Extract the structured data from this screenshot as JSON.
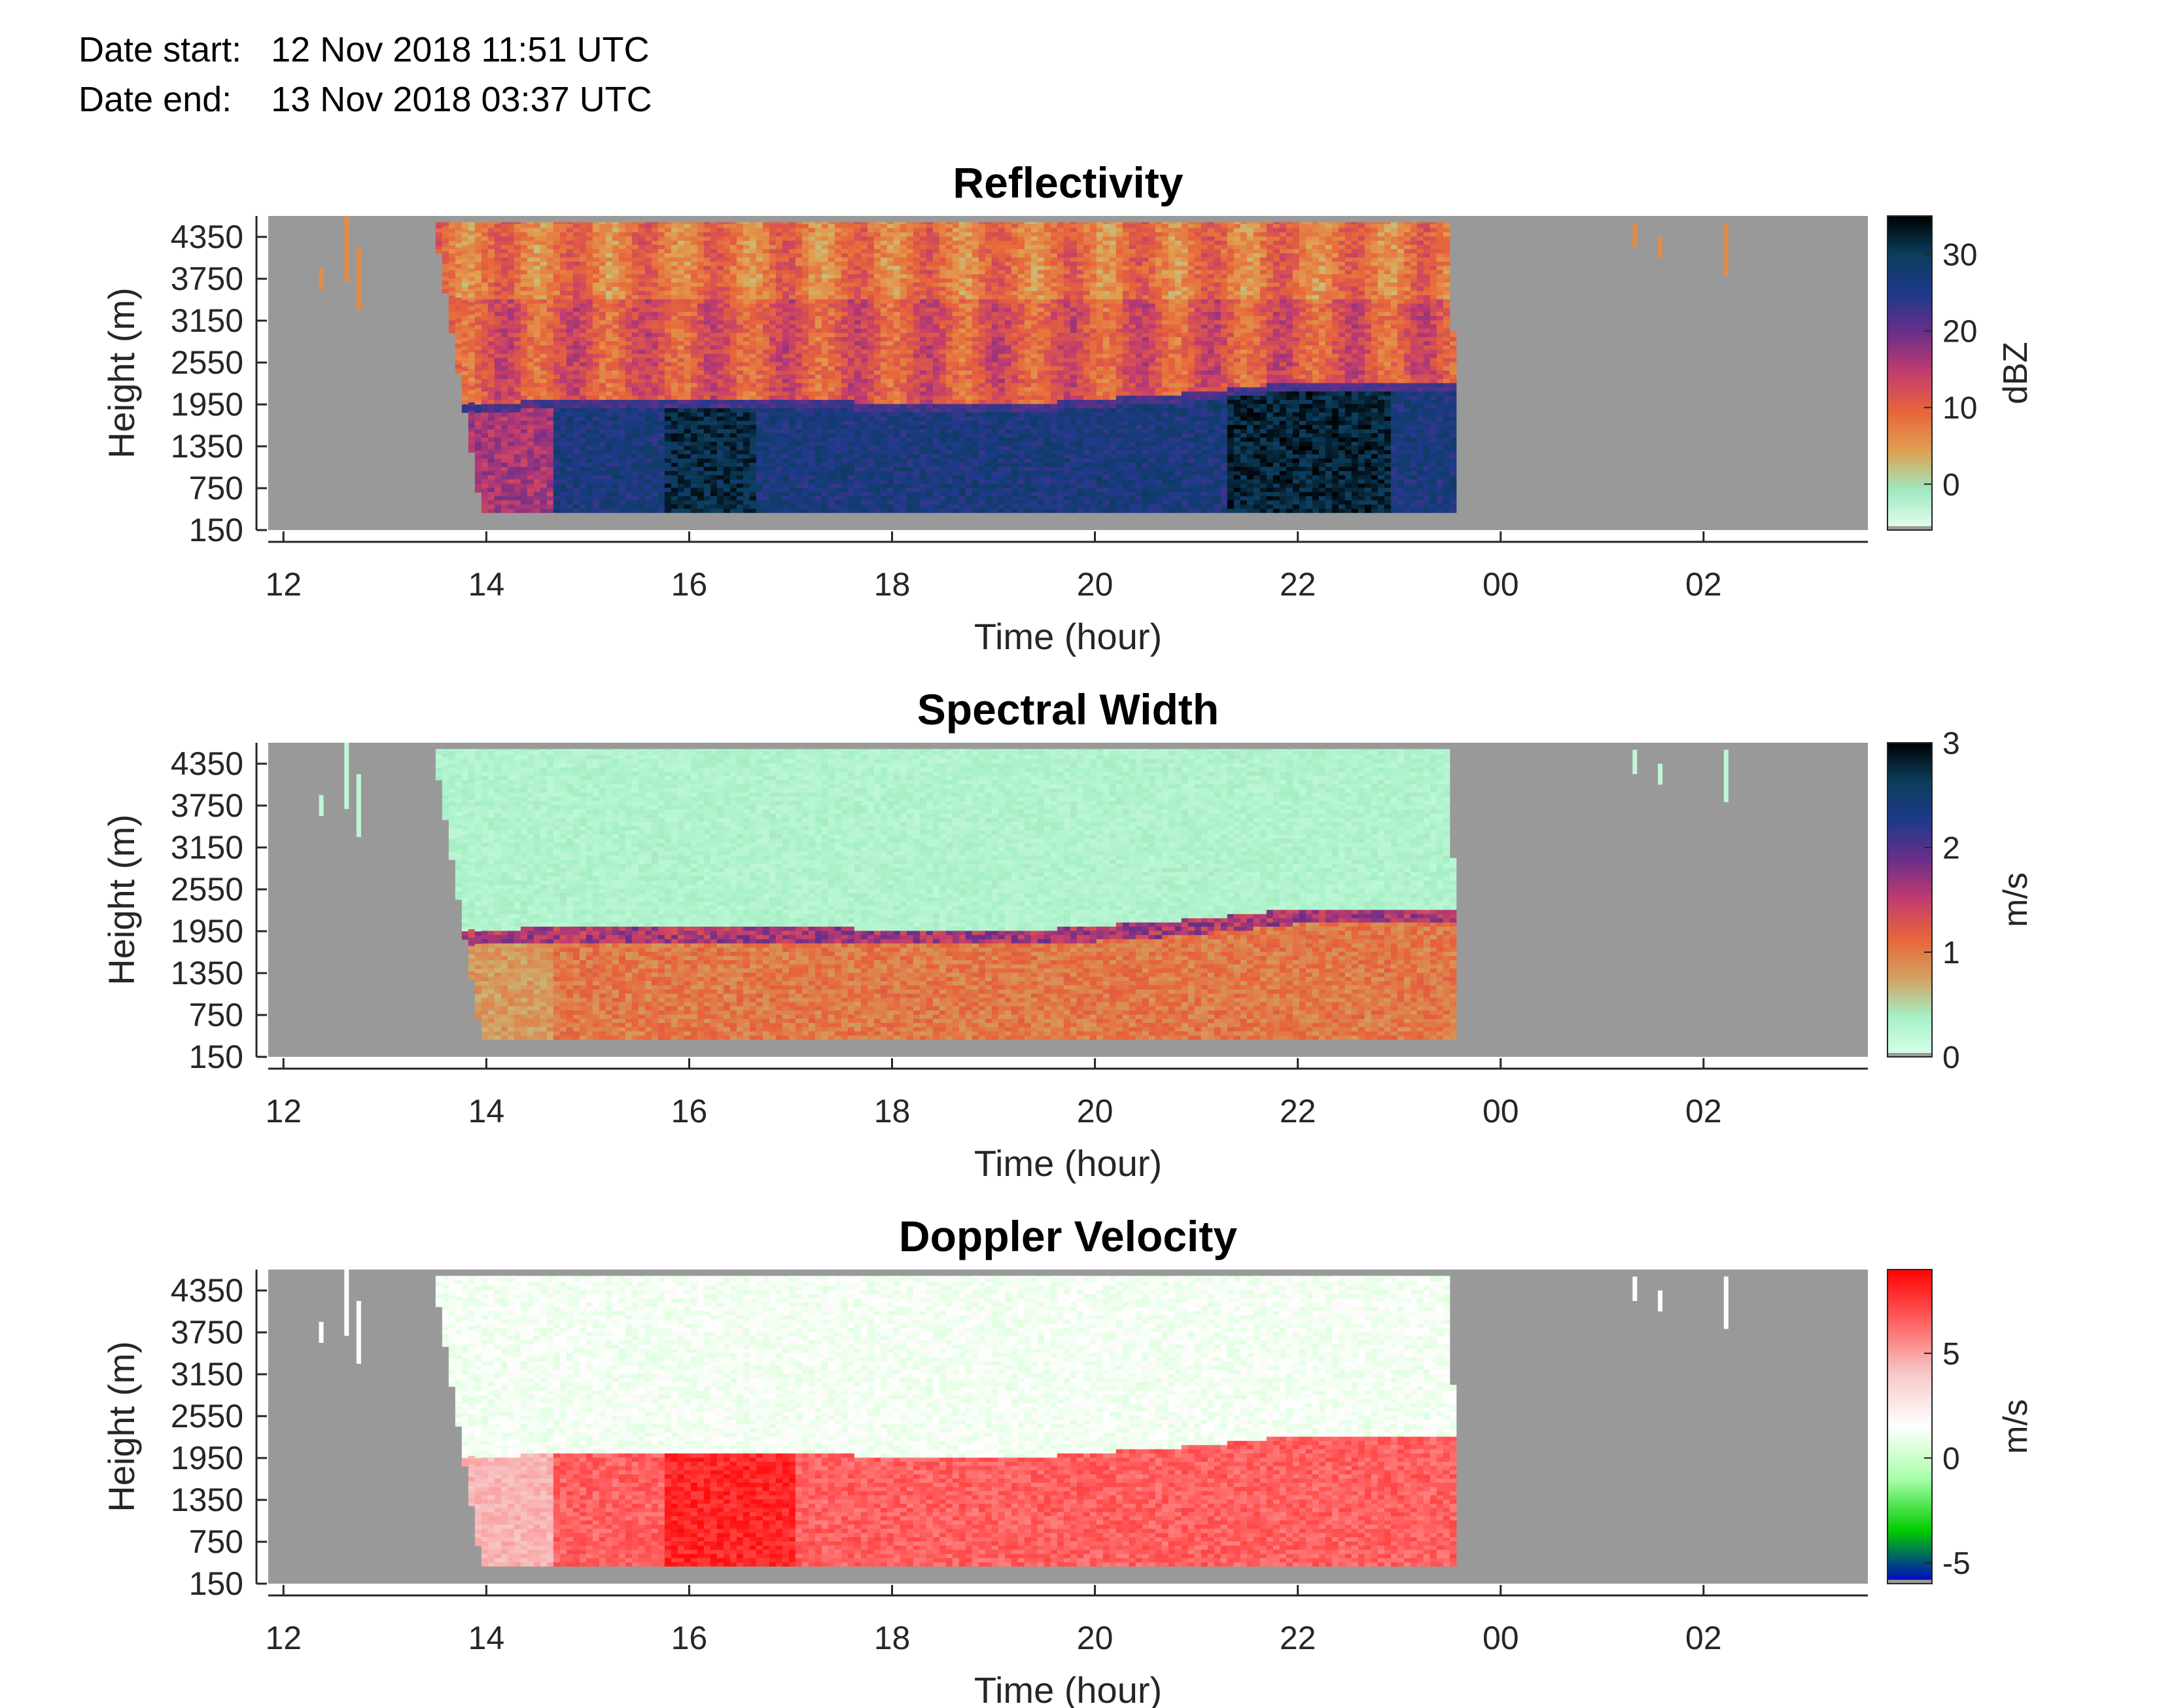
{
  "header": {
    "date_start_label": "Date start:",
    "date_start_value": "12 Nov 2018 11:51 UTC",
    "date_end_label": "Date end:",
    "date_end_value": "13 Nov 2018 03:37 UTC"
  },
  "chart_data": [
    {
      "type": "heatmap",
      "title": "Reflectivity",
      "xlabel": "Time (hour)",
      "ylabel": "Height (m)",
      "x_ticks": [
        "12",
        "14",
        "16",
        "18",
        "20",
        "22",
        "00",
        "02"
      ],
      "y_ticks": [
        "150",
        "750",
        "1350",
        "1950",
        "2550",
        "3150",
        "3750",
        "4350"
      ],
      "xlim_hours": [
        11.85,
        27.62
      ],
      "ylim": [
        150,
        4650
      ],
      "colorbar": {
        "label": "dBZ",
        "range": [
          -6,
          35
        ],
        "ticks": [
          "0",
          "10",
          "20",
          "30"
        ],
        "tick_values": [
          0,
          10,
          20,
          30
        ],
        "colors": [
          "#e6fff0",
          "#9fe8c0",
          "#e0a050",
          "#e8643a",
          "#c23c6e",
          "#6a2e8a",
          "#1e3a8a",
          "#0b3d5c",
          "#000000"
        ]
      },
      "no_data_color": "#999999",
      "echo_region": {
        "start_hour": 13.5,
        "end_hour": 23.55,
        "cloud_base_hour": 13.92,
        "top_m": 4500,
        "bottom_m": 400
      },
      "bright_band": {
        "from_hour": 13.92,
        "to_hour": 23.5,
        "height_m": [
          1950,
          2000,
          1950,
          1950,
          2100,
          2250,
          2250
        ],
        "at_hours": [
          13.92,
          16.0,
          18.0,
          19.5,
          21.0,
          22.0,
          23.5
        ]
      },
      "layers": {
        "above_band_value": 12,
        "below_band_value": 28,
        "rain_core_value": 33
      }
    },
    {
      "type": "heatmap",
      "title": "Spectral Width",
      "xlabel": "Time (hour)",
      "ylabel": "Height (m)",
      "x_ticks": [
        "12",
        "14",
        "16",
        "18",
        "20",
        "22",
        "00",
        "02"
      ],
      "y_ticks": [
        "150",
        "750",
        "1350",
        "1950",
        "2550",
        "3150",
        "3750",
        "4350"
      ],
      "xlim_hours": [
        11.85,
        27.62
      ],
      "ylim": [
        150,
        4650
      ],
      "colorbar": {
        "label": "m/s",
        "range": [
          0,
          3
        ],
        "ticks": [
          "0",
          "1",
          "2",
          "3"
        ],
        "tick_values": [
          0,
          1,
          2,
          3
        ],
        "colors": [
          "#d9ffe9",
          "#a6f0c6",
          "#d4a060",
          "#e8643a",
          "#c23c6e",
          "#6a2e8a",
          "#1e3a8a",
          "#0b3d5c",
          "#000000"
        ]
      },
      "no_data_color": "#999999",
      "layers": {
        "above_band_value": 0.2,
        "below_band_value": 1.05,
        "band_value": 1.8
      }
    },
    {
      "type": "heatmap",
      "title": "Doppler Velocity",
      "xlabel": "Time (hour)",
      "ylabel": "Height (m)",
      "x_ticks": [
        "12",
        "14",
        "16",
        "18",
        "20",
        "22",
        "00",
        "02"
      ],
      "y_ticks": [
        "150",
        "750",
        "1350",
        "1950",
        "2550",
        "3150",
        "3750",
        "4350"
      ],
      "xlim_hours": [
        11.85,
        27.62
      ],
      "ylim": [
        150,
        4650
      ],
      "colorbar": {
        "label": "m/s",
        "range": [
          -6,
          9
        ],
        "ticks": [
          "-5",
          "0",
          "5"
        ],
        "tick_values": [
          -5,
          0,
          5
        ],
        "colors": [
          "#0000c8",
          "#00cc00",
          "#aaffaa",
          "#ffffff",
          "#f7c8c8",
          "#ff6060",
          "#ff0000"
        ]
      },
      "no_data_color": "#999999",
      "layers": {
        "above_band_value": 1.5,
        "below_band_value": 7.0
      }
    }
  ]
}
